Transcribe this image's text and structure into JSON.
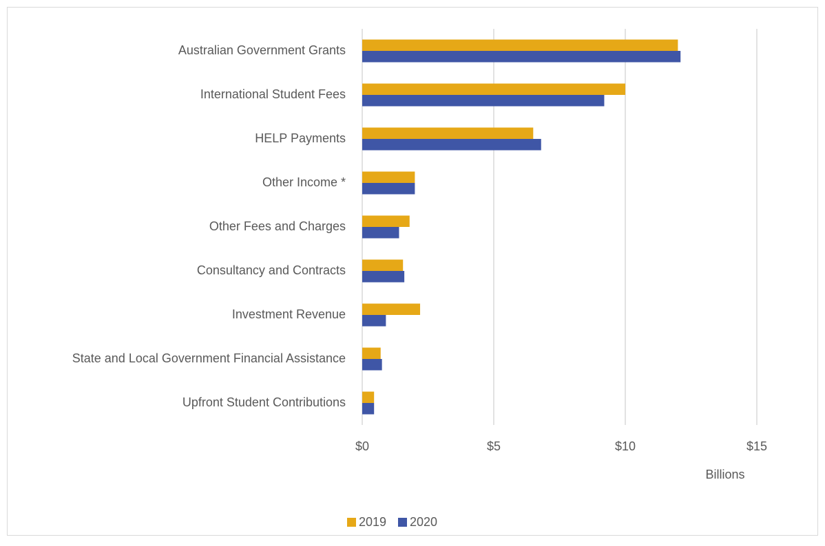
{
  "chart_data": {
    "type": "bar",
    "orientation": "horizontal",
    "categories": [
      "Australian Government Grants",
      "International Student Fees",
      "HELP Payments",
      "Other Income *",
      "Other Fees and Charges",
      "Consultancy and Contracts",
      "Investment Revenue",
      "State and Local Government Financial Assistance",
      "Upfront Student Contributions"
    ],
    "series": [
      {
        "name": "2019",
        "color": "#e6a817",
        "values": [
          12.0,
          10.0,
          6.5,
          2.0,
          1.8,
          1.55,
          2.2,
          0.7,
          0.45
        ]
      },
      {
        "name": "2020",
        "color": "#3f56a6",
        "values": [
          12.1,
          9.2,
          6.8,
          2.0,
          1.4,
          1.6,
          0.9,
          0.75,
          0.45
        ]
      }
    ],
    "xlim": [
      0,
      15
    ],
    "xticks": [
      {
        "value": 0,
        "label": "$0"
      },
      {
        "value": 5,
        "label": "$5"
      },
      {
        "value": 10,
        "label": "$10"
      },
      {
        "value": 15,
        "label": "$15"
      }
    ],
    "x_axis_label": "Billions",
    "grid": true,
    "legend": "bottom"
  }
}
